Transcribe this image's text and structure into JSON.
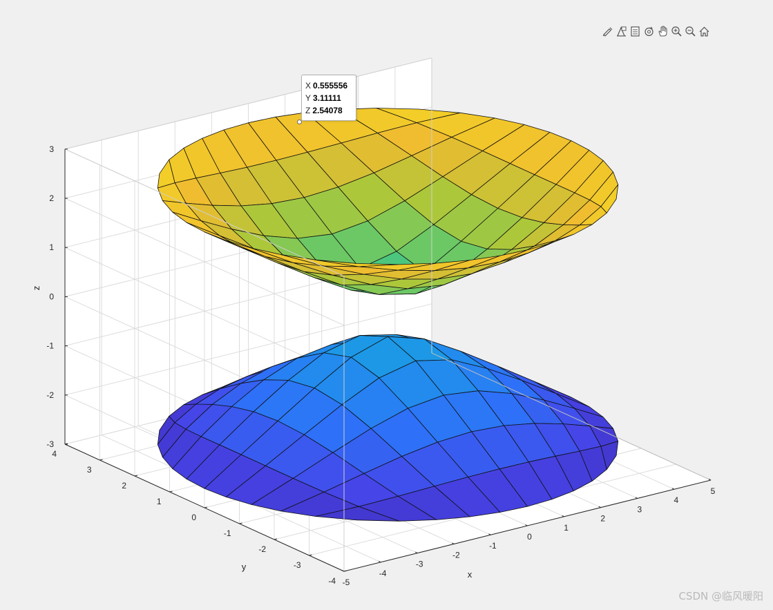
{
  "toolbar": {
    "icons": [
      "brush-icon",
      "data-tip-icon",
      "legend-icon",
      "rotate-3d-icon",
      "pan-hand-icon",
      "zoom-in-icon",
      "zoom-out-icon",
      "home-icon"
    ]
  },
  "datatip": {
    "x_label": "X",
    "x_value": "0.555556",
    "y_label": "Y",
    "y_value": "3.11111",
    "z_label": "Z",
    "z_value": "2.54078"
  },
  "watermark": "CSDN @临风暖阳",
  "chart_data": {
    "type": "surface",
    "title": "",
    "xlabel": "x",
    "ylabel": "y",
    "zlabel": "z",
    "xlim": [
      -5,
      5
    ],
    "ylim": [
      -4,
      4
    ],
    "zlim": [
      -3,
      3
    ],
    "xticks": [
      "-5",
      "-4",
      "-3",
      "-2",
      "-1",
      "0",
      "1",
      "2",
      "3",
      "4",
      "5"
    ],
    "yticks": [
      "-4",
      "-3",
      "-2",
      "-1",
      "0",
      "1",
      "2",
      "3",
      "4"
    ],
    "zticks": [
      "-3",
      "-2",
      "-1",
      "0",
      "1",
      "2",
      "3"
    ],
    "grid": true,
    "colormap": "parula",
    "series": [
      {
        "name": "",
        "surface": "upper sheet of hyperboloid of two sheets",
        "z_min": 0.44,
        "z_max": 2.6,
        "mesh": "10 x 10 parametric grid over ellipse x^2/25 + y^2/16 <= 1"
      },
      {
        "name": "",
        "surface": "lower sheet of hyperboloid of two sheets",
        "z_min": -2.6,
        "z_max": -0.44,
        "mesh": "10 x 10 parametric grid over ellipse x^2/25 + y^2/16 <= 1"
      }
    ],
    "datatip_point": [
      0.555556,
      3.11111,
      2.54078
    ]
  }
}
